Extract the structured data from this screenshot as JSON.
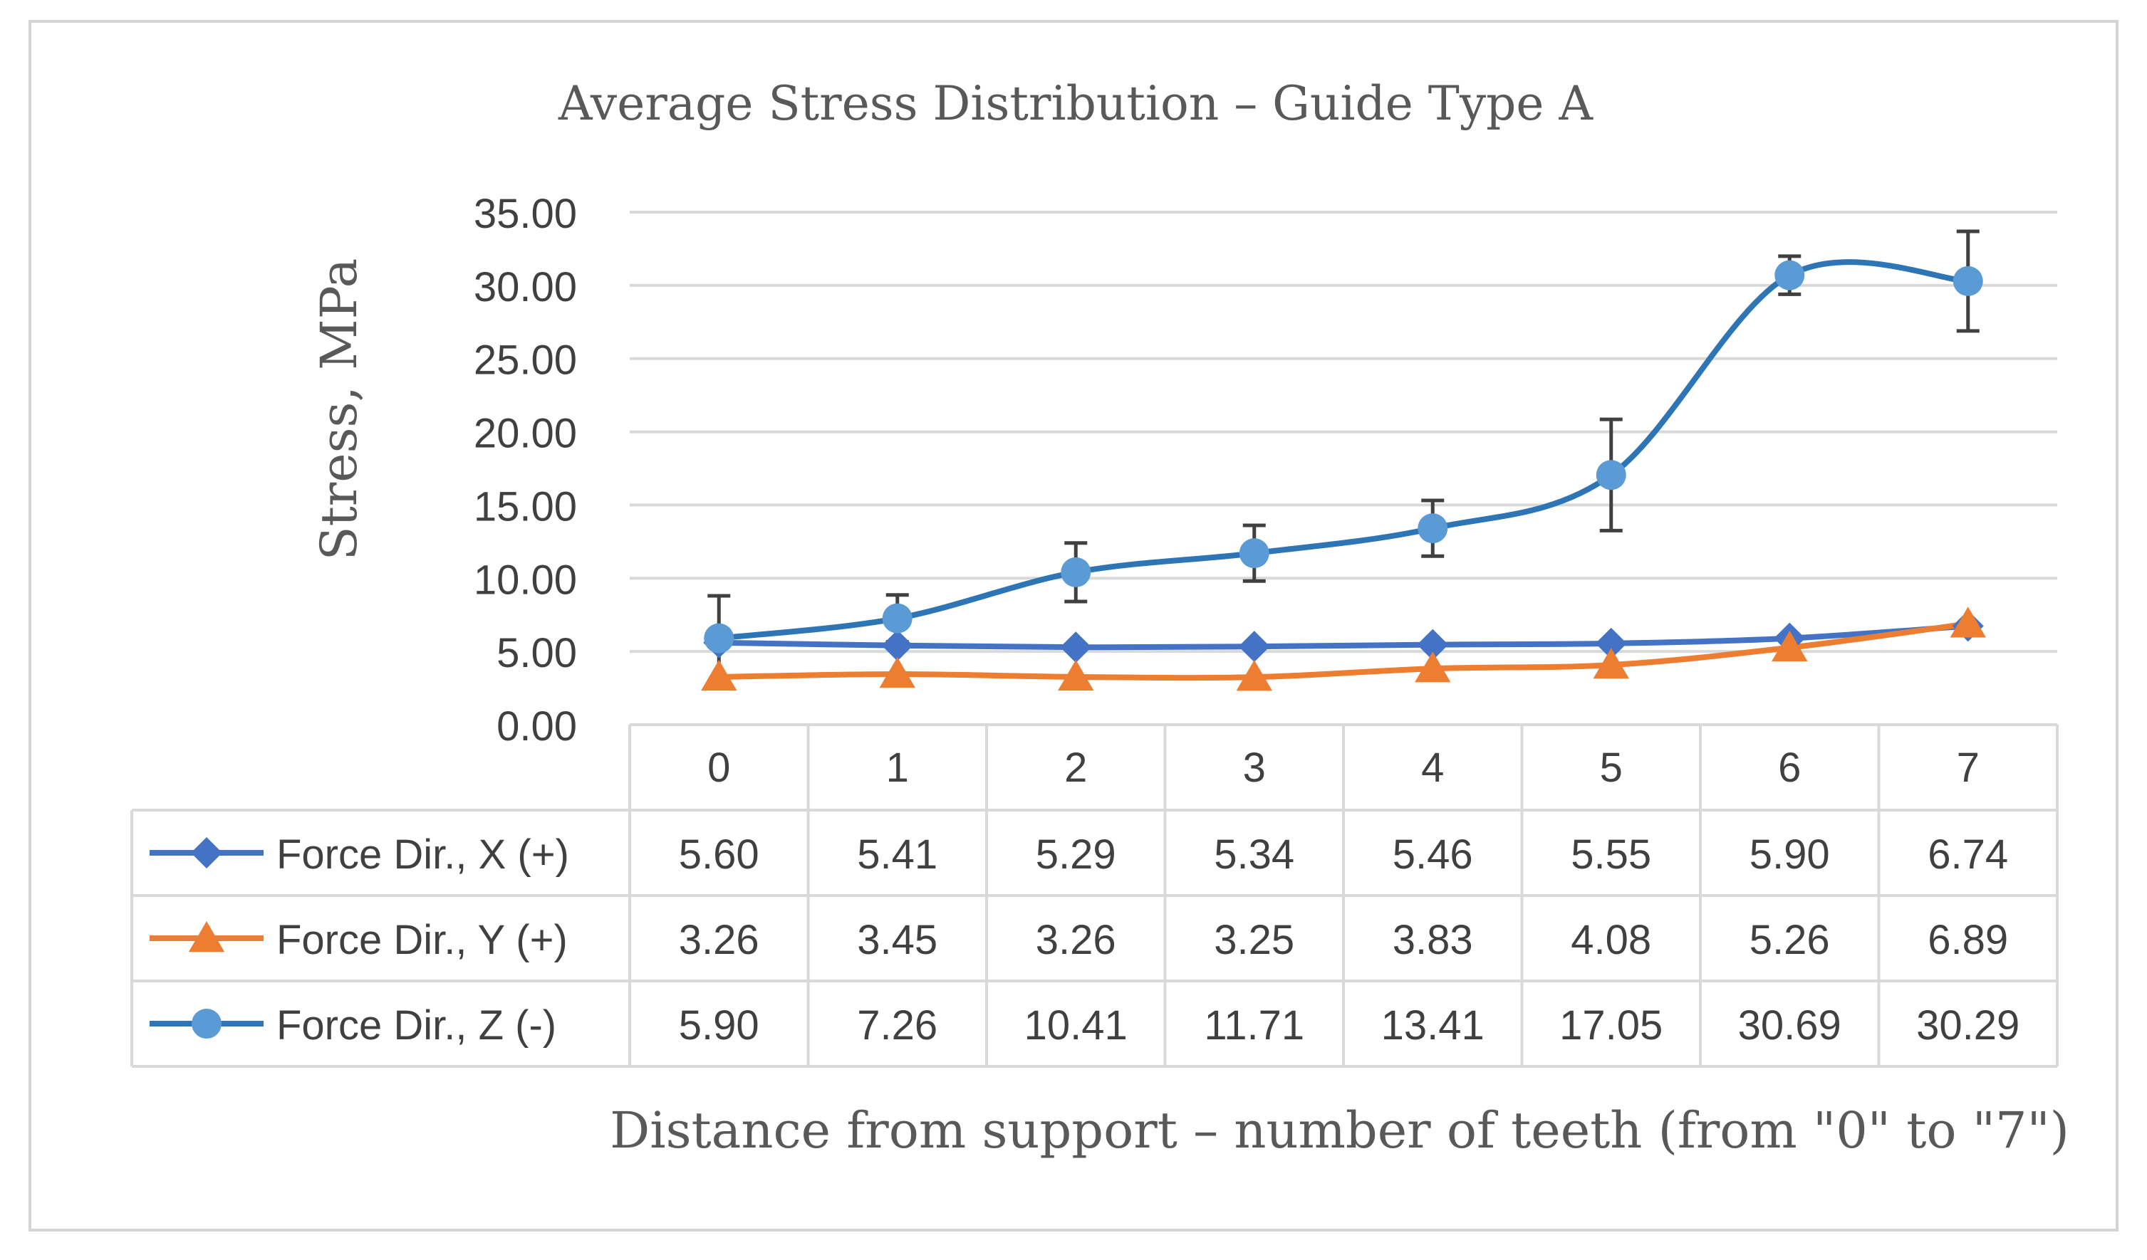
{
  "chart_data": {
    "type": "line",
    "title": "Average Stress Distribution – Guide Type A",
    "xlabel": "Distance from support – number of teeth (from \"0\" to \"7\")",
    "ylabel": "Stress, MPa",
    "ylim": [
      0,
      35
    ],
    "y_ticks": [
      "0.00",
      "5.00",
      "10.00",
      "15.00",
      "20.00",
      "25.00",
      "30.00",
      "35.00"
    ],
    "categories": [
      "0",
      "1",
      "2",
      "3",
      "4",
      "5",
      "6",
      "7"
    ],
    "grid": true,
    "legend_placement": "data-table",
    "series": [
      {
        "name": "Force Dir., X (+)",
        "color": "#4472c4",
        "marker": "diamond",
        "values": [
          5.6,
          5.41,
          5.29,
          5.34,
          5.46,
          5.55,
          5.9,
          6.74
        ],
        "labels": [
          "5.60",
          "5.41",
          "5.29",
          "5.34",
          "5.46",
          "5.55",
          "5.90",
          "6.74"
        ],
        "error": [
          0,
          0,
          0,
          0,
          0,
          0,
          0,
          0
        ]
      },
      {
        "name": "Force Dir., Y (+)",
        "color": "#ed7d31",
        "marker": "triangle",
        "values": [
          3.26,
          3.45,
          3.26,
          3.25,
          3.83,
          4.08,
          5.26,
          6.89
        ],
        "labels": [
          "3.26",
          "3.45",
          "3.26",
          "3.25",
          "3.83",
          "4.08",
          "5.26",
          "6.89"
        ],
        "error": [
          0,
          0,
          0,
          0,
          0,
          0,
          0,
          0
        ]
      },
      {
        "name": "Force Dir., Z (-)",
        "color": "#5b9bd5",
        "line_color": "#2e75b6",
        "marker": "circle",
        "values": [
          5.9,
          7.26,
          10.41,
          11.71,
          13.41,
          17.05,
          30.69,
          30.29
        ],
        "labels": [
          "5.90",
          "7.26",
          "10.41",
          "11.71",
          "13.41",
          "17.05",
          "30.69",
          "30.29"
        ],
        "error": [
          2.9,
          1.6,
          2.0,
          1.9,
          1.9,
          3.8,
          1.3,
          3.4
        ]
      }
    ]
  }
}
